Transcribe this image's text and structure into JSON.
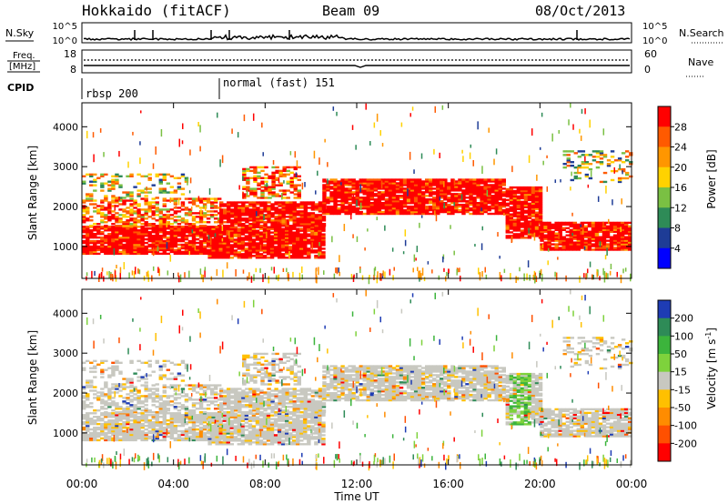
{
  "header": {
    "title": "Hokkaido (fitACF)",
    "beam": "Beam 09",
    "date": "08/Oct/2013"
  },
  "top_panels": {
    "nsky": {
      "label": "N.Sky",
      "ticks": [
        "10^5",
        "10^0"
      ]
    },
    "nsearch": {
      "label": "N.Search",
      "ticks": [
        "10^5",
        "10^0"
      ]
    },
    "freq": {
      "label_line1": "Freq.",
      "label_line2": "[MHz]",
      "ticks": [
        "18",
        "8"
      ]
    },
    "nave": {
      "label": "Nave",
      "ticks": [
        "60",
        "0"
      ]
    },
    "cpid": {
      "label": "CPID",
      "segments": [
        {
          "start_hour": 0,
          "name": "rbsp 200"
        },
        {
          "start_hour": 6,
          "name": "normal (fast) 151"
        }
      ]
    }
  },
  "chart_data": [
    {
      "type": "heatmap",
      "parameter": "power",
      "ylabel": "Slant Range [km]",
      "y_ticks": [
        1000,
        2000,
        3000,
        4000
      ],
      "ylim": [
        200,
        4600
      ],
      "xlim_hours": [
        0,
        24
      ],
      "colorbar": {
        "label": "Power [dB]",
        "ticks": [
          "28",
          "24",
          "20",
          "16",
          "12",
          "8",
          "4"
        ],
        "colors": [
          "#ff0000",
          "#ff5a00",
          "#ff9600",
          "#ffd200",
          "#7ac043",
          "#2e8b57",
          "#1e3c96",
          "#0000ff"
        ]
      },
      "regions": [
        {
          "t0": 0,
          "t1": 6,
          "r0": 800,
          "r1": 1500,
          "level": "high"
        },
        {
          "t0": 0,
          "t1": 6,
          "r0": 1500,
          "r1": 2200,
          "level": "mid"
        },
        {
          "t0": 0,
          "t1": 4.5,
          "r0": 2200,
          "r1": 2800,
          "level": "low"
        },
        {
          "t0": 5.5,
          "t1": 10.5,
          "r0": 700,
          "r1": 1500,
          "level": "high"
        },
        {
          "t0": 6,
          "t1": 10.5,
          "r0": 1500,
          "r1": 2100,
          "level": "high"
        },
        {
          "t0": 7,
          "t1": 9.5,
          "r0": 2200,
          "r1": 3000,
          "level": "mid"
        },
        {
          "t0": 10.5,
          "t1": 18.5,
          "r0": 1800,
          "r1": 2700,
          "level": "high"
        },
        {
          "t0": 18.5,
          "t1": 20,
          "r0": 1200,
          "r1": 2500,
          "level": "high"
        },
        {
          "t0": 20,
          "t1": 24,
          "r0": 900,
          "r1": 1600,
          "level": "high"
        },
        {
          "t0": 21,
          "t1": 24,
          "r0": 2600,
          "r1": 3400,
          "level": "low"
        }
      ]
    },
    {
      "type": "heatmap",
      "parameter": "velocity",
      "ylabel": "Slant Range [km]",
      "y_ticks": [
        1000,
        2000,
        3000,
        4000
      ],
      "ylim": [
        200,
        4600
      ],
      "xlim_hours": [
        0,
        24
      ],
      "xlabel": "Time UT",
      "x_ticks": [
        "00:00",
        "04:00",
        "08:00",
        "12:00",
        "16:00",
        "20:00",
        "00:00"
      ],
      "colorbar": {
        "label_main": "Velocity [m s",
        "label_sup": "-1",
        "label_end": "]",
        "ticks": [
          "200",
          "100",
          "50",
          "15",
          "-15",
          "-50",
          "-100",
          "-200"
        ],
        "colors": [
          "#1e3cb4",
          "#2e8b57",
          "#3cb43c",
          "#7ed23c",
          "#c8c8c0",
          "#ffc000",
          "#ff8c00",
          "#ff5000",
          "#ff0000"
        ]
      }
    }
  ]
}
